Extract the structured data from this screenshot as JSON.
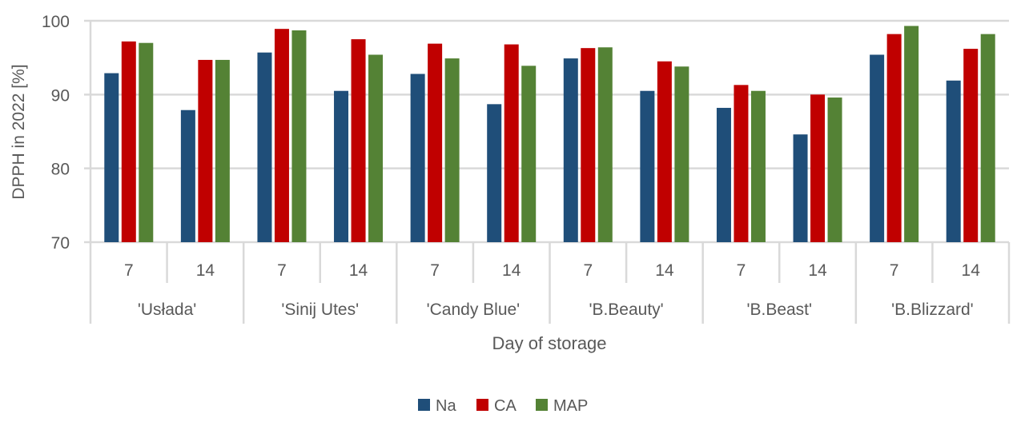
{
  "chart_data": {
    "type": "bar",
    "title": "",
    "ylabel": "DPPH in 2022 [%]",
    "xlabel": "Day of storage",
    "ylim": [
      70,
      100
    ],
    "yticks": [
      "70",
      "80",
      "90",
      "100"
    ],
    "grid": true,
    "legend_position": "bottom",
    "groups": [
      "'Usłada'",
      "'Sinij Utes'",
      "'Candy Blue'",
      "'B.Beauty'",
      "'B.Beast'",
      "'B.Blizzard'"
    ],
    "categories": [
      "7",
      "14",
      "7",
      "14",
      "7",
      "14",
      "7",
      "14",
      "7",
      "14",
      "7",
      "14"
    ],
    "series": [
      {
        "name": "Na",
        "color": "#1f4e79",
        "values": [
          92.9,
          87.9,
          95.7,
          90.5,
          92.8,
          88.7,
          94.9,
          90.5,
          88.2,
          84.6,
          95.4,
          91.9
        ]
      },
      {
        "name": "CA",
        "color": "#c00000",
        "values": [
          97.2,
          94.7,
          98.9,
          97.5,
          96.9,
          96.8,
          96.3,
          94.5,
          91.3,
          90.0,
          98.2,
          96.2
        ]
      },
      {
        "name": "MAP",
        "color": "#548235",
        "values": [
          97.0,
          94.7,
          98.7,
          95.4,
          94.9,
          93.9,
          96.4,
          93.8,
          90.5,
          89.6,
          99.3,
          98.2
        ]
      }
    ]
  }
}
